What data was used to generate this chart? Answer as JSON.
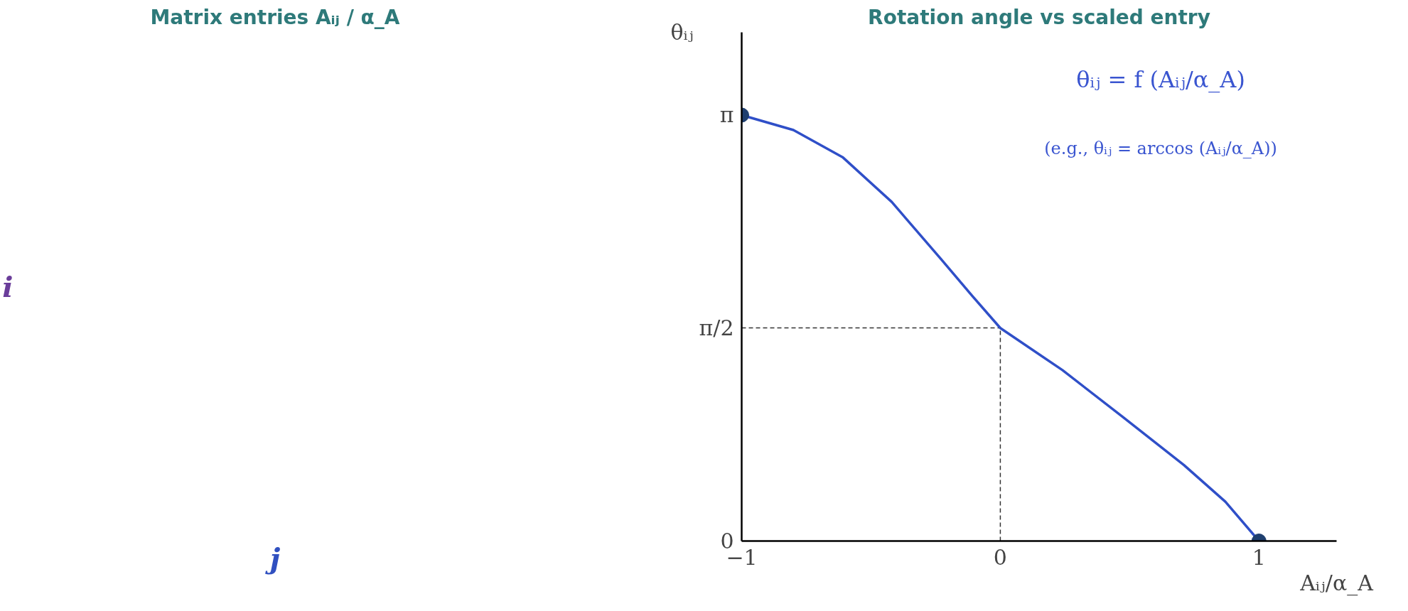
{
  "chart_data": [
    {
      "type": "other",
      "title": "Matrix entries Aᵢⱼ / α_A",
      "xlabel": "j",
      "ylabel": "i"
    },
    {
      "type": "line",
      "title": "Rotation angle vs scaled entry",
      "xlabel": "Aᵢⱼ/α_A",
      "ylabel": "θᵢⱼ",
      "annotations": [
        "θᵢⱼ = f (Aᵢⱼ/α_A)",
        "(e.g., θᵢⱼ = arccos (Aᵢⱼ/α_A))"
      ],
      "xlim": [
        -1,
        1.3
      ],
      "ylim": [
        0,
        3.75
      ],
      "xticks": [
        {
          "value": -1,
          "label": "−1"
        },
        0,
        1
      ],
      "yticks": [
        0,
        {
          "value": 1.5708,
          "label": "π/2"
        },
        {
          "value": 3.1416,
          "label": "π"
        }
      ],
      "ref_lines": [
        {
          "axis": "x",
          "value": 0,
          "label": null,
          "line_style": "dashed",
          "color": "#333333"
        },
        {
          "axis": "y",
          "value": 1.5708,
          "label": null,
          "line_style": "dashed",
          "color": "#333333"
        }
      ],
      "grid": false,
      "series": [
        {
          "color": "#2f4fc8",
          "marker": "none",
          "x": [
            -1,
            -0.8,
            -0.61,
            -0.42,
            -0.23,
            -0.11,
            0,
            0.24,
            0.47,
            0.71,
            0.87,
            1
          ],
          "values": [
            3.14,
            3.03,
            2.83,
            2.5,
            2.08,
            1.81,
            1.57,
            1.26,
            0.92,
            0.56,
            0.29,
            0
          ]
        },
        {
          "type": "scatter",
          "color": "#1f3f6f",
          "marker": "circle",
          "x": [
            -1,
            1
          ],
          "values": [
            3.14,
            0
          ]
        }
      ]
    }
  ]
}
